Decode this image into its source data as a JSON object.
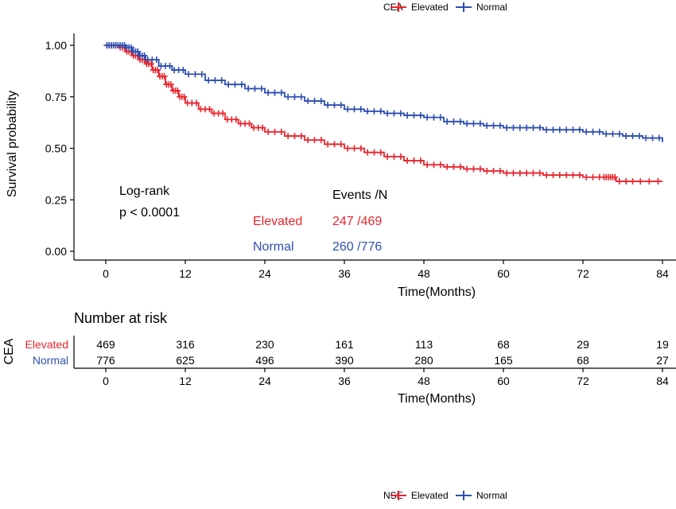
{
  "colors": {
    "elevated": "#e8262e",
    "normal": "#2e4fb0",
    "axis": "#000000"
  },
  "legend_top": {
    "title": "CEA",
    "items": [
      "Elevated",
      "Normal"
    ]
  },
  "legend_bottom": {
    "title": "NSE",
    "items": [
      "Elevated",
      "Normal"
    ]
  },
  "chart_data": [
    {
      "type": "line",
      "subtype": "kaplan-meier step",
      "xlabel": "Time(Months)",
      "ylabel": "Survival probability",
      "xlim": [
        0,
        84
      ],
      "ylim": [
        0,
        1
      ],
      "xticks": [
        "0",
        "12",
        "24",
        "36",
        "48",
        "60",
        "72",
        "84"
      ],
      "yticks": [
        "0.00",
        "0.25",
        "0.50",
        "0.75",
        "1.00"
      ],
      "grid": false,
      "legend_position": "top",
      "annotation": {
        "line1": "Log-rank",
        "line2": "p < 0.0001"
      },
      "events_table": {
        "header": "Events /N",
        "rows": [
          {
            "label": "Elevated",
            "value": "247 /469"
          },
          {
            "label": "Normal",
            "value": "260 /776"
          }
        ]
      },
      "series": [
        {
          "name": "Elevated",
          "x": [
            0,
            1,
            2,
            3,
            4,
            5,
            6,
            7,
            8,
            9,
            10,
            11,
            12,
            14,
            16,
            18,
            20,
            22,
            24,
            27,
            30,
            33,
            36,
            39,
            42,
            45,
            48,
            51,
            54,
            57,
            60,
            63,
            66,
            69,
            72,
            75,
            76,
            77,
            80,
            84
          ],
          "y": [
            1.0,
            1.0,
            0.99,
            0.97,
            0.95,
            0.93,
            0.91,
            0.88,
            0.85,
            0.81,
            0.78,
            0.75,
            0.72,
            0.69,
            0.67,
            0.64,
            0.62,
            0.6,
            0.58,
            0.56,
            0.54,
            0.52,
            0.5,
            0.48,
            0.46,
            0.44,
            0.42,
            0.41,
            0.4,
            0.39,
            0.38,
            0.38,
            0.37,
            0.37,
            0.36,
            0.36,
            0.36,
            0.34,
            0.34,
            0.34
          ]
        },
        {
          "name": "Normal",
          "x": [
            0,
            1,
            2,
            3,
            4,
            5,
            6,
            8,
            10,
            12,
            15,
            18,
            21,
            24,
            27,
            30,
            33,
            36,
            39,
            42,
            45,
            48,
            51,
            54,
            57,
            60,
            63,
            66,
            69,
            72,
            75,
            78,
            81,
            84
          ],
          "y": [
            1.0,
            1.0,
            1.0,
            0.99,
            0.97,
            0.95,
            0.93,
            0.9,
            0.88,
            0.86,
            0.83,
            0.81,
            0.79,
            0.77,
            0.75,
            0.73,
            0.71,
            0.69,
            0.68,
            0.67,
            0.66,
            0.65,
            0.63,
            0.62,
            0.61,
            0.6,
            0.6,
            0.59,
            0.59,
            0.58,
            0.57,
            0.56,
            0.55,
            0.53
          ]
        }
      ]
    },
    {
      "type": "table",
      "title": "Number at risk",
      "group_label": "CEA",
      "xlabel": "Time(Months)",
      "xticks": [
        "0",
        "12",
        "24",
        "36",
        "48",
        "60",
        "72",
        "84"
      ],
      "rows": [
        {
          "name": "Elevated",
          "values": [
            469,
            316,
            230,
            161,
            113,
            68,
            29,
            19
          ]
        },
        {
          "name": "Normal",
          "values": [
            776,
            625,
            496,
            390,
            280,
            165,
            68,
            27
          ]
        }
      ]
    }
  ]
}
